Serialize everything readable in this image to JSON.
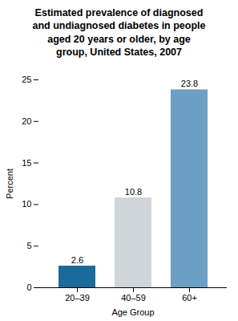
{
  "chart_data": {
    "type": "bar",
    "title": "Estimated prevalence of diagnosed\nand undiagnosed diabetes in people\naged 20 years or older, by age\ngroup, United States, 2007",
    "xlabel": "Age Group",
    "ylabel": "Percent",
    "categories": [
      "20–39",
      "40–59",
      "60+"
    ],
    "values": [
      2.6,
      10.8,
      23.8
    ],
    "colors": [
      "#1a6b9a",
      "#d0d5db",
      "#6b9fc4"
    ],
    "ylim": [
      0,
      25
    ],
    "yticks": [
      0,
      5,
      10,
      15,
      20,
      25
    ],
    "grid": false,
    "data_labels": true
  }
}
